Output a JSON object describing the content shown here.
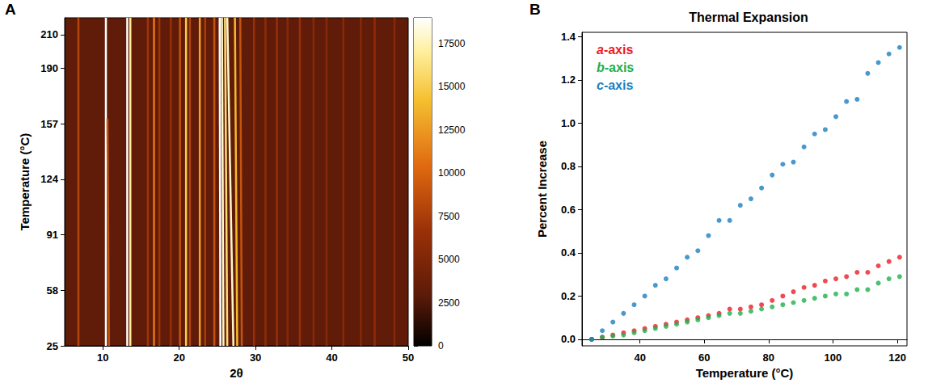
{
  "chart_data": [
    {
      "panel": "A",
      "type": "heatmap",
      "xlabel": "2θ",
      "ylabel": "Temperature (°C)",
      "xlim": [
        5,
        50
      ],
      "xticks": [
        10,
        20,
        30,
        40,
        50
      ],
      "ylim": [
        25,
        220
      ],
      "yticks": [
        25,
        58,
        91,
        124,
        157,
        190,
        210
      ],
      "background": 3200,
      "peaks": [
        {
          "two_theta": [
            6.8,
            6.8
          ],
          "temperature": [
            25,
            220
          ],
          "intensity": 8000
        },
        {
          "two_theta": [
            10.4,
            10.4
          ],
          "temperature": [
            25,
            220
          ],
          "intensity": 19000
        },
        {
          "two_theta": [
            10.8,
            10.6
          ],
          "temperature": [
            25,
            160
          ],
          "intensity": 9000
        },
        {
          "two_theta": [
            13.2,
            13.2
          ],
          "temperature": [
            25,
            220
          ],
          "intensity": 19000
        },
        {
          "two_theta": [
            13.6,
            13.6
          ],
          "temperature": [
            25,
            220
          ],
          "intensity": 17000
        },
        {
          "two_theta": [
            15.9,
            15.9
          ],
          "temperature": [
            25,
            220
          ],
          "intensity": 7000
        },
        {
          "two_theta": [
            16.7,
            16.7
          ],
          "temperature": [
            25,
            220
          ],
          "intensity": 11000
        },
        {
          "two_theta": [
            17.4,
            17.4
          ],
          "temperature": [
            25,
            220
          ],
          "intensity": 7000
        },
        {
          "two_theta": [
            18.9,
            18.9
          ],
          "temperature": [
            25,
            220
          ],
          "intensity": 6500
        },
        {
          "two_theta": [
            20.1,
            20.1
          ],
          "temperature": [
            25,
            220
          ],
          "intensity": 9000
        },
        {
          "two_theta": [
            20.9,
            20.9
          ],
          "temperature": [
            25,
            220
          ],
          "intensity": 15000
        },
        {
          "two_theta": [
            21.4,
            21.4
          ],
          "temperature": [
            25,
            220
          ],
          "intensity": 8000
        },
        {
          "two_theta": [
            22.7,
            22.7
          ],
          "temperature": [
            25,
            220
          ],
          "intensity": 13000
        },
        {
          "two_theta": [
            23.4,
            23.4
          ],
          "temperature": [
            25,
            220
          ],
          "intensity": 7500
        },
        {
          "two_theta": [
            24.6,
            24.6
          ],
          "temperature": [
            25,
            220
          ],
          "intensity": 9000
        },
        {
          "two_theta": [
            25.4,
            25.3
          ],
          "temperature": [
            25,
            220
          ],
          "intensity": 19000
        },
        {
          "two_theta": [
            25.8,
            25.6
          ],
          "temperature": [
            25,
            220
          ],
          "intensity": 18000
        },
        {
          "two_theta": [
            26.3,
            26.0
          ],
          "temperature": [
            25,
            220
          ],
          "intensity": 16000
        },
        {
          "two_theta": [
            27.1,
            26.3
          ],
          "temperature": [
            25,
            220
          ],
          "intensity": 18000
        },
        {
          "two_theta": [
            27.6,
            27.3
          ],
          "temperature": [
            25,
            220
          ],
          "intensity": 14000
        },
        {
          "two_theta": [
            28.2,
            28.0
          ],
          "temperature": [
            25,
            220
          ],
          "intensity": 9000
        },
        {
          "two_theta": [
            29.8,
            29.8
          ],
          "temperature": [
            25,
            220
          ],
          "intensity": 6500
        },
        {
          "two_theta": [
            31.3,
            31.3
          ],
          "temperature": [
            25,
            220
          ],
          "intensity": 6000
        },
        {
          "two_theta": [
            32.8,
            32.8
          ],
          "temperature": [
            25,
            220
          ],
          "intensity": 6500
        },
        {
          "two_theta": [
            34.2,
            34.2
          ],
          "temperature": [
            25,
            220
          ],
          "intensity": 5500
        },
        {
          "two_theta": [
            35.8,
            35.8
          ],
          "temperature": [
            25,
            220
          ],
          "intensity": 6500
        },
        {
          "two_theta": [
            37.6,
            37.6
          ],
          "temperature": [
            25,
            220
          ],
          "intensity": 5500
        },
        {
          "two_theta": [
            39.3,
            39.3
          ],
          "temperature": [
            25,
            220
          ],
          "intensity": 5500
        },
        {
          "two_theta": [
            41.5,
            41.5
          ],
          "temperature": [
            25,
            220
          ],
          "intensity": 5500
        },
        {
          "two_theta": [
            43.8,
            43.8
          ],
          "temperature": [
            25,
            220
          ],
          "intensity": 5500
        },
        {
          "two_theta": [
            45.6,
            45.6
          ],
          "temperature": [
            25,
            220
          ],
          "intensity": 6000
        },
        {
          "two_theta": [
            48.2,
            48.2
          ],
          "temperature": [
            25,
            220
          ],
          "intensity": 5500
        }
      ],
      "colorbar": {
        "range": [
          0,
          19000
        ],
        "ticks": [
          0,
          2500,
          5000,
          7500,
          10000,
          12500,
          15000,
          17500
        ]
      }
    },
    {
      "panel": "B",
      "type": "scatter",
      "title": "Thermal Expansion",
      "xlabel": "Temperature (°C)",
      "ylabel": "Percent Increase",
      "xlim": [
        22,
        123
      ],
      "xticks": [
        40,
        60,
        80,
        100,
        120
      ],
      "ylim": [
        -0.03,
        1.42
      ],
      "yticks": [
        {
          "value": 0,
          "label": "0.0"
        },
        0.2,
        0.4,
        0.6,
        0.8,
        {
          "value": 1,
          "label": "1.0"
        },
        1.2,
        1.4
      ],
      "legend": "upper left",
      "marker": "circle",
      "x": [
        25,
        28.3,
        31.6,
        34.9,
        38.2,
        41.5,
        44.8,
        48.1,
        51.4,
        54.7,
        58,
        61.3,
        64.6,
        67.9,
        71.2,
        74.5,
        77.8,
        81.1,
        84.4,
        87.7,
        91,
        94.3,
        97.6,
        100.9,
        104.2,
        107.5,
        110.8,
        114.1,
        117.4,
        120.7
      ],
      "series": [
        {
          "name": "a-axis",
          "color": "#ee1c25",
          "values": [
            0,
            0.01,
            0.02,
            0.03,
            0.04,
            0.05,
            0.06,
            0.07,
            0.08,
            0.09,
            0.1,
            0.11,
            0.12,
            0.14,
            0.14,
            0.15,
            0.16,
            0.18,
            0.2,
            0.22,
            0.24,
            0.25,
            0.27,
            0.28,
            0.29,
            0.31,
            0.31,
            0.34,
            0.36,
            0.38
          ]
        },
        {
          "name": "b-axis",
          "color": "#1fb04b",
          "values": [
            0,
            0.01,
            0.015,
            0.02,
            0.03,
            0.04,
            0.05,
            0.06,
            0.07,
            0.08,
            0.09,
            0.1,
            0.11,
            0.12,
            0.12,
            0.13,
            0.14,
            0.15,
            0.16,
            0.17,
            0.18,
            0.19,
            0.2,
            0.21,
            0.21,
            0.23,
            0.23,
            0.26,
            0.28,
            0.29
          ]
        },
        {
          "name": "c-axis",
          "color": "#1c7fc0",
          "values": [
            0,
            0.04,
            0.08,
            0.12,
            0.16,
            0.2,
            0.25,
            0.28,
            0.33,
            0.38,
            0.41,
            0.48,
            0.55,
            0.55,
            0.62,
            0.65,
            0.7,
            0.76,
            0.81,
            0.82,
            0.89,
            0.95,
            0.97,
            1.03,
            1.1,
            1.11,
            1.23,
            1.28,
            1.32,
            1.35
          ]
        }
      ]
    }
  ]
}
